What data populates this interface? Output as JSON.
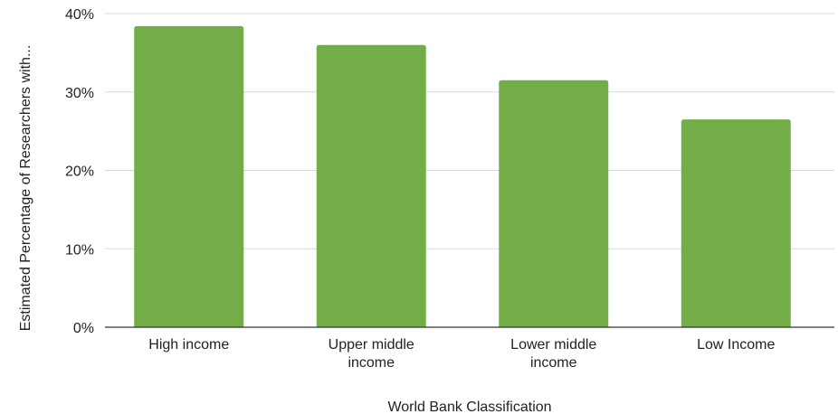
{
  "chart_data": {
    "type": "bar",
    "categories": [
      "High income",
      "Upper middle income",
      "Lower middle income",
      "Low Income"
    ],
    "values": [
      38.4,
      36.0,
      31.5,
      26.5
    ],
    "xlabel": "World Bank Classification",
    "ylabel": "Estimated Percentage of Researchers with...",
    "ylim": [
      0,
      40
    ],
    "yticks": [
      0,
      10,
      20,
      30,
      40
    ],
    "ytick_labels": [
      "0%",
      "10%",
      "20%",
      "30%",
      "40%"
    ],
    "grid": true,
    "legend": "none",
    "colors": {
      "bar": "#72AD48",
      "grid": "#D9D9D9",
      "axis": "#333333"
    }
  }
}
